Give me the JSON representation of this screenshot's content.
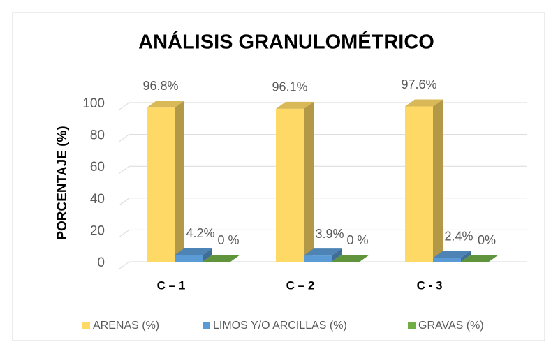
{
  "chart_data": {
    "type": "bar3d",
    "title": "ANÁLISIS GRANULOMÉTRICO",
    "y_label": "PORCENTAJE (%)",
    "categories": [
      "C – 1",
      "C – 2",
      "C - 3"
    ],
    "series": [
      {
        "name": "ARENAS (%)",
        "color": "#ffd966",
        "values": [
          96.8,
          96.1,
          97.6
        ],
        "value_labels": [
          "96.8%",
          "96.1%",
          "97.6%"
        ]
      },
      {
        "name": "LIMOS Y/O ARCILLAS (%)",
        "color": "#5b9bd5",
        "values": [
          4.2,
          3.9,
          2.4
        ],
        "value_labels": [
          "4.2%",
          "3.9%",
          "2.4%"
        ]
      },
      {
        "name": "GRAVAS (%)",
        "color": "#70ad47",
        "values": [
          0,
          0,
          0
        ],
        "value_labels": [
          "0 %",
          "0 %",
          "0%"
        ]
      }
    ],
    "ylim": [
      0,
      100
    ],
    "yticks": [
      0,
      20,
      40,
      60,
      80,
      100
    ],
    "grid": true,
    "legend": "bottom"
  }
}
